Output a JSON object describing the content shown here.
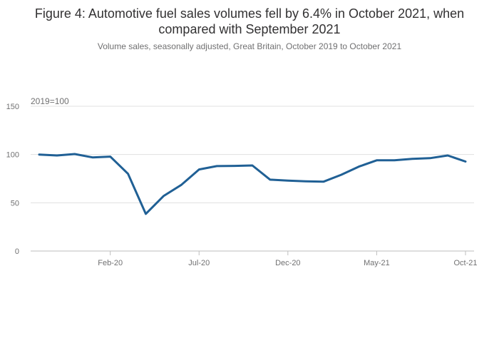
{
  "title": "Figure 4: Automotive fuel sales volumes fell by 6.4% in October 2021, when compared with September 2021",
  "subtitle": "Volume sales, seasonally adjusted, Great Britain, October 2019 to October 2021",
  "chart_data": {
    "type": "line",
    "ylabel": "2019=100",
    "ylim": [
      0,
      150
    ],
    "yticks": [
      0,
      50,
      100,
      150
    ],
    "x": [
      "Oct-19",
      "Nov-19",
      "Dec-19",
      "Jan-20",
      "Feb-20",
      "Mar-20",
      "Apr-20",
      "May-20",
      "Jun-20",
      "Jul-20",
      "Aug-20",
      "Sep-20",
      "Oct-20",
      "Nov-20",
      "Dec-20",
      "Jan-21",
      "Feb-21",
      "Mar-21",
      "Apr-21",
      "May-21",
      "Jun-21",
      "Jul-21",
      "Aug-21",
      "Sep-21",
      "Oct-21"
    ],
    "xtick_labels": [
      "Feb-20",
      "Jul-20",
      "Dec-20",
      "May-21",
      "Oct-21"
    ],
    "series": [
      {
        "values": [
          100.0,
          99.0,
          100.5,
          97.0,
          97.8,
          80.0,
          38.5,
          57.0,
          68.5,
          84.5,
          88.0,
          88.2,
          88.7,
          74.0,
          73.0,
          72.3,
          71.8,
          79.0,
          87.5,
          94.0,
          94.0,
          95.5,
          96.2,
          99.0,
          92.7
        ],
        "color": "#206095"
      }
    ],
    "grid": true,
    "legend": "none",
    "colors": {
      "line": "#206095",
      "grid": "#e0e0e0",
      "axis": "#bebebe",
      "text": "#707071"
    }
  }
}
